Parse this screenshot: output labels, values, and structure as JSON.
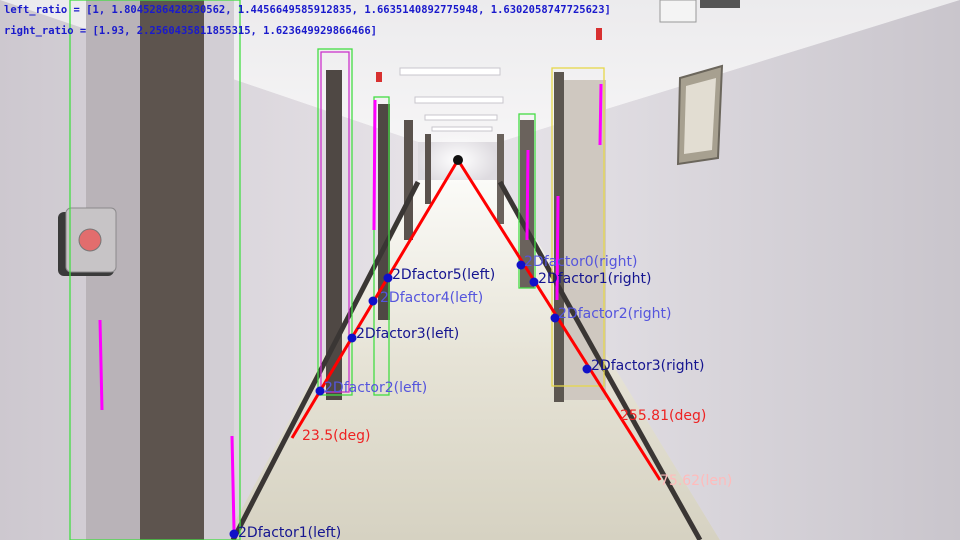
{
  "overlay": {
    "left_ratio": "left_ratio = [1, 1.8045286428230562, 1.4456649585912835, 1.6635140892775948, 1.6302058747725623]",
    "right_ratio": "right_ratio = [1.93, 2.2560435811855315, 1.623649929866466]"
  },
  "labels": {
    "left": [
      "2Dfactor1(left)",
      "2Dfactor2(left)",
      "2Dfactor3(left)",
      "2Dfactor4(left)",
      "2Dfactor5(left)"
    ],
    "right": [
      "2Dfactor0(right)",
      "2Dfactor1(right)",
      "2Dfactor2(right)",
      "2Dfactor3(right)"
    ],
    "left_angle": "23.5(deg)",
    "right_angle": "255.81(deg)",
    "length": "75.62(len)"
  },
  "colors": {
    "line": "#ff0000",
    "marker": "#1010c8",
    "label_dark": "#151590",
    "label_light": "#5555dd",
    "box_green": "#44dd44",
    "box_magenta": "#cc33cc",
    "box_yellow": "#e6d84a",
    "stroke_magenta": "#ff00ff",
    "angle_text": "#ee2222",
    "len_text": "#ffbbbb"
  }
}
